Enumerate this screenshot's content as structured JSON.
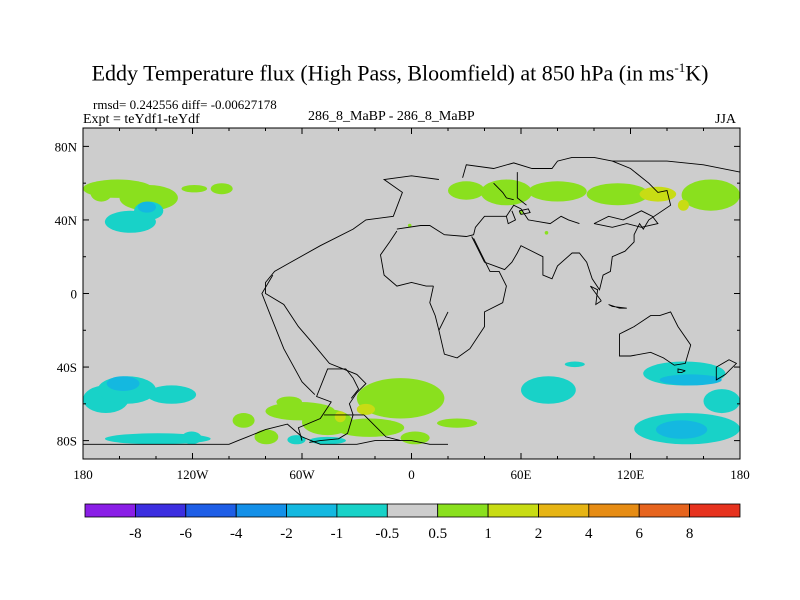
{
  "chart_data": {
    "type": "heatmap",
    "title": "Eddy Temperature flux (High Pass, Bloomfield) at 850 hPa (in ms",
    "title_superscript": "-1",
    "title_suffix": "K)",
    "stats": "rmsd= 0.242556 diff= -0.00627178",
    "experiment": "Expt = teYdf1-teYdf",
    "subtitle": "286_8_MaBP - 286_8_MaBP",
    "season": "JJA",
    "x_ticks": [
      {
        "value": -180,
        "label": "180"
      },
      {
        "value": -120,
        "label": "120W"
      },
      {
        "value": -60,
        "label": "60W"
      },
      {
        "value": 0,
        "label": "0"
      },
      {
        "value": 60,
        "label": "60E"
      },
      {
        "value": 120,
        "label": "120E"
      },
      {
        "value": 180,
        "label": "180"
      }
    ],
    "y_ticks": [
      {
        "value": 80,
        "label": "80N"
      },
      {
        "value": 40,
        "label": "40N"
      },
      {
        "value": 0,
        "label": "0"
      },
      {
        "value": -40,
        "label": "40S"
      },
      {
        "value": -80,
        "label": "80S"
      }
    ],
    "xlim": [
      -180,
      180
    ],
    "ylim": [
      -90,
      90
    ],
    "colorbar": {
      "labels": [
        "-8",
        "-6",
        "-4",
        "-2",
        "-1",
        "-0.5",
        "0.5",
        "1",
        "2",
        "4",
        "6",
        "8"
      ],
      "colors": [
        "#8a1ee6",
        "#3c2ee0",
        "#1e5ee6",
        "#1490e8",
        "#14b8e0",
        "#18d2c8",
        "#cdcdcd",
        "#8ae01e",
        "#c8dc14",
        "#e6b414",
        "#e68c14",
        "#e6641e",
        "#e6321e"
      ]
    },
    "fields": [
      {
        "lon": [
          -180,
          -142
        ],
        "lat": [
          52,
          62
        ],
        "value": 0.7
      },
      {
        "lon": [
          -176,
          -164
        ],
        "lat": [
          50,
          60
        ],
        "value": 0.7
      },
      {
        "lon": [
          -160,
          -128
        ],
        "lat": [
          45,
          59
        ],
        "value": 0.7
      },
      {
        "lon": [
          -152,
          -136
        ],
        "lat": [
          40,
          50
        ],
        "value": -0.7
      },
      {
        "lon": [
          -168,
          -140
        ],
        "lat": [
          33,
          45
        ],
        "value": -0.7
      },
      {
        "lon": [
          -150,
          -140
        ],
        "lat": [
          44,
          50
        ],
        "value": -1.2
      },
      {
        "lon": [
          -126,
          -112
        ],
        "lat": [
          55,
          59
        ],
        "value": 0.7
      },
      {
        "lon": [
          -110,
          -98
        ],
        "lat": [
          54,
          60
        ],
        "value": 0.7
      },
      {
        "lon": [
          20,
          40
        ],
        "lat": [
          51,
          61
        ],
        "value": 0.7
      },
      {
        "lon": [
          38,
          66
        ],
        "lat": [
          48,
          62
        ],
        "value": 0.7
      },
      {
        "lon": [
          64,
          96
        ],
        "lat": [
          50,
          61
        ],
        "value": 0.7
      },
      {
        "lon": [
          96,
          130
        ],
        "lat": [
          48,
          60
        ],
        "value": 0.7
      },
      {
        "lon": [
          125,
          145
        ],
        "lat": [
          50,
          58
        ],
        "value": 1.5
      },
      {
        "lon": [
          148,
          180
        ],
        "lat": [
          45,
          62
        ],
        "value": 0.7
      },
      {
        "lon": [
          146,
          152
        ],
        "lat": [
          45,
          51
        ],
        "value": 1.5
      },
      {
        "lon": [
          59,
          61
        ],
        "lat": [
          43,
          45
        ],
        "value": 0.7
      },
      {
        "lon": [
          -2,
          0
        ],
        "lat": [
          36,
          38
        ],
        "value": 0.7
      },
      {
        "lon": [
          73,
          75
        ],
        "lat": [
          32,
          34
        ],
        "value": 0.7
      },
      {
        "lon": [
          -180,
          -155
        ],
        "lat": [
          -65,
          -50
        ],
        "value": -0.7
      },
      {
        "lon": [
          -172,
          -140
        ],
        "lat": [
          -60,
          -45
        ],
        "value": -0.7
      },
      {
        "lon": [
          -167,
          -149
        ],
        "lat": [
          -53,
          -45
        ],
        "value": -1.2
      },
      {
        "lon": [
          -145,
          -118
        ],
        "lat": [
          -60,
          -50
        ],
        "value": -0.7
      },
      {
        "lon": [
          -168,
          -110
        ],
        "lat": [
          -82,
          -76
        ],
        "value": -0.7
      },
      {
        "lon": [
          -126,
          -115
        ],
        "lat": [
          -82,
          -75
        ],
        "value": -0.7
      },
      {
        "lon": [
          -98,
          -86
        ],
        "lat": [
          -73,
          -65
        ],
        "value": 0.7
      },
      {
        "lon": [
          -74,
          -60
        ],
        "lat": [
          -62,
          -56
        ],
        "value": 0.7
      },
      {
        "lon": [
          -80,
          -42
        ],
        "lat": [
          -69,
          -59
        ],
        "value": 0.7
      },
      {
        "lon": [
          -60,
          -32
        ],
        "lat": [
          -77,
          -63
        ],
        "value": 0.7
      },
      {
        "lon": [
          -42,
          -36
        ],
        "lat": [
          -70,
          -64
        ],
        "value": 1.5
      },
      {
        "lon": [
          -30,
          18
        ],
        "lat": [
          -68,
          -46
        ],
        "value": 0.7
      },
      {
        "lon": [
          -42,
          -4
        ],
        "lat": [
          -78,
          -68
        ],
        "value": 0.7
      },
      {
        "lon": [
          -6,
          10
        ],
        "lat": [
          -82,
          -75
        ],
        "value": 0.7
      },
      {
        "lon": [
          -30,
          -20
        ],
        "lat": [
          -66,
          -60
        ],
        "value": 1.5
      },
      {
        "lon": [
          14,
          36
        ],
        "lat": [
          -73,
          -68
        ],
        "value": 0.7
      },
      {
        "lon": [
          -56,
          -36
        ],
        "lat": [
          -82,
          -78
        ],
        "value": -0.7
      },
      {
        "lon": [
          -68,
          -58
        ],
        "lat": [
          -82,
          -77
        ],
        "value": -0.7
      },
      {
        "lon": [
          -86,
          -73
        ],
        "lat": [
          -82,
          -74
        ],
        "value": 0.7
      },
      {
        "lon": [
          60,
          90
        ],
        "lat": [
          -60,
          -45
        ],
        "value": -0.7
      },
      {
        "lon": [
          65,
          82
        ],
        "lat": [
          -57,
          -48
        ],
        "value": -0.7
      },
      {
        "lon": [
          84,
          95
        ],
        "lat": [
          -40,
          -37
        ],
        "value": -0.7
      },
      {
        "lon": [
          127,
          172
        ],
        "lat": [
          -50,
          -37
        ],
        "value": -0.7
      },
      {
        "lon": [
          136,
          170
        ],
        "lat": [
          -50,
          -44
        ],
        "value": -1.2
      },
      {
        "lon": [
          122,
          180
        ],
        "lat": [
          -82,
          -65
        ],
        "value": -0.7
      },
      {
        "lon": [
          134,
          162
        ],
        "lat": [
          -79,
          -69
        ],
        "value": -1.2
      },
      {
        "lon": [
          160,
          180
        ],
        "lat": [
          -65,
          -52
        ],
        "value": -0.7
      }
    ],
    "coastlines": [
      [
        [
          -180,
          -82
        ],
        [
          -100,
          -82
        ],
        [
          -95,
          -80
        ],
        [
          -90,
          -78
        ],
        [
          -80,
          -74
        ],
        [
          -68,
          -71
        ],
        [
          -60,
          -78
        ],
        [
          -50,
          -82
        ],
        [
          -30,
          -82
        ],
        [
          -20,
          -80
        ],
        [
          0,
          -80
        ],
        [
          10,
          -82
        ],
        [
          20,
          -82
        ]
      ],
      [
        [
          -56,
          -81
        ],
        [
          -50,
          -80
        ],
        [
          -40,
          -79
        ],
        [
          -35,
          -76
        ],
        [
          -32,
          -66
        ],
        [
          -34,
          -60
        ],
        [
          -30,
          -54
        ],
        [
          -25,
          -49
        ],
        [
          -30,
          -44
        ],
        [
          -45,
          -38
        ],
        [
          -55,
          -26
        ],
        [
          -62,
          -18
        ],
        [
          -70,
          -6
        ],
        [
          -80,
          0
        ],
        [
          -80,
          6
        ],
        [
          -75,
          12
        ],
        [
          -68,
          16
        ],
        [
          -50,
          26
        ],
        [
          -32,
          35
        ],
        [
          -25,
          40
        ],
        [
          -10,
          42
        ],
        [
          -5,
          55
        ],
        [
          -15,
          62
        ],
        [
          0,
          64
        ],
        [
          15,
          62
        ]
      ],
      [
        [
          -60,
          -80
        ],
        [
          -62,
          -73
        ],
        [
          -50,
          -68
        ],
        [
          -44,
          -59
        ],
        [
          -52,
          -56
        ],
        [
          -46,
          -41
        ],
        [
          -36,
          -41
        ],
        [
          -32,
          -46
        ],
        [
          -29,
          -52
        ],
        [
          -33,
          -57
        ]
      ],
      [
        [
          -48,
          -66
        ],
        [
          -26,
          -66
        ]
      ],
      [
        [
          -26,
          -66
        ],
        [
          -14,
          -78
        ],
        [
          -6,
          -80
        ]
      ],
      [
        [
          -53,
          -55
        ],
        [
          -60,
          -48
        ],
        [
          -70,
          -30
        ],
        [
          -78,
          -10
        ],
        [
          -82,
          0
        ],
        [
          -76,
          10
        ]
      ],
      [
        [
          -8,
          35
        ],
        [
          5,
          37
        ],
        [
          10,
          37
        ],
        [
          18,
          32
        ],
        [
          30,
          31
        ],
        [
          34,
          32
        ],
        [
          35,
          36
        ],
        [
          40,
          42
        ],
        [
          46,
          42
        ],
        [
          52,
          42
        ],
        [
          56,
          48
        ],
        [
          60,
          46
        ],
        [
          64,
          40
        ],
        [
          76,
          38
        ],
        [
          82,
          42
        ],
        [
          86,
          40
        ],
        [
          92,
          38
        ]
      ],
      [
        [
          33,
          31
        ],
        [
          40,
          17
        ],
        [
          51,
          13
        ],
        [
          55,
          17
        ],
        [
          58,
          22
        ],
        [
          60,
          26
        ],
        [
          64,
          24
        ],
        [
          72,
          20
        ],
        [
          72,
          10
        ],
        [
          77,
          8
        ],
        [
          80,
          15
        ],
        [
          88,
          22
        ],
        [
          92,
          22
        ],
        [
          96,
          17
        ],
        [
          99,
          8
        ],
        [
          103,
          2
        ],
        [
          105,
          10
        ],
        [
          109,
          12
        ],
        [
          110,
          20
        ],
        [
          117,
          23
        ],
        [
          122,
          28
        ],
        [
          122,
          32
        ],
        [
          125,
          38
        ],
        [
          127,
          35
        ],
        [
          130,
          40
        ],
        [
          142,
          48
        ],
        [
          140,
          56
        ],
        [
          135,
          55
        ],
        [
          130,
          60
        ],
        [
          120,
          68
        ],
        [
          110,
          72
        ]
      ],
      [
        [
          20,
          -10
        ],
        [
          15,
          -20
        ],
        [
          18,
          -33
        ],
        [
          25,
          -35
        ],
        [
          32,
          -30
        ],
        [
          40,
          -18
        ],
        [
          40,
          -10
        ],
        [
          50,
          -5
        ],
        [
          52,
          4
        ],
        [
          48,
          12
        ],
        [
          43,
          12
        ],
        [
          38,
          22
        ],
        [
          34,
          30
        ]
      ],
      [
        [
          12,
          4
        ],
        [
          8,
          4
        ],
        [
          0,
          6
        ],
        [
          -8,
          4
        ],
        [
          -15,
          10
        ],
        [
          -17,
          21
        ],
        [
          -12,
          28
        ],
        [
          -8,
          34
        ]
      ],
      [
        [
          12,
          4
        ],
        [
          10,
          -5
        ],
        [
          13,
          -12
        ],
        [
          15,
          -20
        ]
      ],
      [
        [
          28,
          63
        ],
        [
          30,
          70
        ],
        [
          45,
          68
        ],
        [
          56,
          71
        ],
        [
          66,
          68
        ],
        [
          77,
          68
        ],
        [
          80,
          72
        ],
        [
          88,
          74
        ],
        [
          100,
          74
        ],
        [
          110,
          72
        ],
        [
          125,
          72
        ],
        [
          140,
          72
        ],
        [
          160,
          70
        ],
        [
          180,
          66
        ]
      ],
      [
        [
          58,
          66
        ],
        [
          58,
          52
        ],
        [
          63,
          48
        ]
      ],
      [
        [
          55,
          45
        ],
        [
          57,
          40
        ],
        [
          53,
          38
        ],
        [
          52,
          42
        ]
      ],
      [
        [
          59,
          45
        ],
        [
          64,
          46
        ],
        [
          65,
          44
        ],
        [
          60,
          43
        ],
        [
          59,
          45
        ]
      ],
      [
        [
          45,
          60
        ],
        [
          50,
          55
        ],
        [
          52,
          52
        ],
        [
          56,
          51
        ]
      ],
      [
        [
          100,
          38
        ],
        [
          108,
          42
        ],
        [
          116,
          40
        ],
        [
          120,
          42
        ],
        [
          126,
          45
        ],
        [
          132,
          42
        ],
        [
          135,
          38
        ],
        [
          126,
          36
        ],
        [
          118,
          38
        ],
        [
          110,
          36
        ],
        [
          100,
          38
        ]
      ],
      [
        [
          122,
          -18
        ],
        [
          118,
          -20
        ],
        [
          114,
          -22
        ],
        [
          114,
          -34
        ],
        [
          120,
          -34
        ],
        [
          131,
          -32
        ],
        [
          138,
          -35
        ],
        [
          144,
          -39
        ],
        [
          150,
          -38
        ],
        [
          153,
          -28
        ],
        [
          146,
          -18
        ],
        [
          142,
          -10
        ],
        [
          136,
          -12
        ],
        [
          131,
          -12
        ],
        [
          122,
          -18
        ]
      ],
      [
        [
          104,
          -4
        ],
        [
          101,
          -6
        ],
        [
          102,
          2
        ],
        [
          98,
          4
        ],
        [
          104,
          -4
        ]
      ],
      [
        [
          150,
          -42
        ],
        [
          148,
          -43
        ],
        [
          146,
          -43
        ],
        [
          146,
          -41
        ],
        [
          150,
          -42
        ]
      ],
      [
        [
          167,
          -40
        ],
        [
          174,
          -36
        ],
        [
          178,
          -38
        ],
        [
          172,
          -44
        ],
        [
          167,
          -47
        ],
        [
          167,
          -40
        ]
      ],
      [
        [
          108,
          -6
        ],
        [
          114,
          -8
        ],
        [
          118,
          -8
        ],
        [
          110,
          -7
        ],
        [
          108,
          -6
        ]
      ]
    ]
  }
}
